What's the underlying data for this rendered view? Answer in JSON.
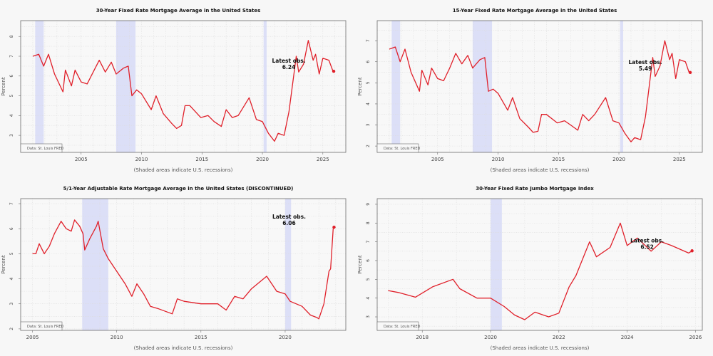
{
  "colors": {
    "line": "#e0202a",
    "recession": "#dcdff7",
    "background": "#f7f7f7",
    "frame": "#6b6b6b"
  },
  "chart_data": [
    {
      "type": "line",
      "title": "30-Year Fixed Rate Mortgage Average in the United States",
      "ylabel": "Percent",
      "xlabel": "(Shaded areas indicate U.S. recessions)",
      "source": "Data: St. Louis FRED",
      "xlim": [
        2000.0,
        2026.9
      ],
      "ylim": [
        2.14,
        8.8
      ],
      "xticks": [
        2005,
        2010,
        2015,
        2020,
        2025
      ],
      "yticks": [
        3,
        4,
        5,
        6,
        7,
        8
      ],
      "grid": true,
      "recessions": [
        [
          2001.2,
          2001.9
        ],
        [
          2007.9,
          2009.5
        ],
        [
          2020.1,
          2020.35
        ]
      ],
      "annotation": {
        "label": "Latest obs.",
        "value": "6.24"
      },
      "x": [
        2001.0,
        2001.5,
        2001.9,
        2002.3,
        2002.8,
        2003.5,
        2003.7,
        2004.2,
        2004.5,
        2005.0,
        2005.5,
        2006.0,
        2006.5,
        2007.0,
        2007.5,
        2007.9,
        2008.5,
        2008.9,
        2009.2,
        2009.6,
        2010.0,
        2010.8,
        2011.2,
        2011.8,
        2012.5,
        2012.9,
        2013.3,
        2013.6,
        2014.0,
        2014.9,
        2015.5,
        2016.0,
        2016.6,
        2017.0,
        2017.5,
        2018.0,
        2018.9,
        2019.5,
        2020.0,
        2020.5,
        2021.0,
        2021.3,
        2021.8,
        2022.2,
        2022.8,
        2023.0,
        2023.4,
        2023.8,
        2024.2,
        2024.4,
        2024.7,
        2025.0,
        2025.5,
        2025.8,
        2025.9
      ],
      "y": [
        7.0,
        7.1,
        6.5,
        7.1,
        6.1,
        5.2,
        6.3,
        5.5,
        6.3,
        5.7,
        5.6,
        6.2,
        6.8,
        6.2,
        6.7,
        6.1,
        6.4,
        6.5,
        5.0,
        5.3,
        5.1,
        4.3,
        5.0,
        4.1,
        3.6,
        3.35,
        3.5,
        4.5,
        4.5,
        3.9,
        4.0,
        3.7,
        3.45,
        4.3,
        3.9,
        4.0,
        4.9,
        3.8,
        3.7,
        3.1,
        2.7,
        3.1,
        3.0,
        4.2,
        7.0,
        6.2,
        6.6,
        7.8,
        6.8,
        7.1,
        6.1,
        6.9,
        6.8,
        6.3,
        6.24
      ]
    },
    {
      "type": "line",
      "title": "15-Year Fixed Rate Mortgage Average in the United States",
      "ylabel": "Percent",
      "xlabel": "(Shaded areas indicate U.S. recessions)",
      "source": "Data: St. Louis FRED",
      "xlim": [
        2000.0,
        2026.9
      ],
      "ylim": [
        1.7,
        7.95
      ],
      "xticks": [
        2005,
        2010,
        2015,
        2020,
        2025
      ],
      "yticks": [
        2,
        3,
        4,
        5,
        6,
        7
      ],
      "grid": true,
      "recessions": [
        [
          2001.2,
          2001.9
        ],
        [
          2007.9,
          2009.5
        ],
        [
          2020.1,
          2020.35
        ]
      ],
      "annotation": {
        "label": "Latest obs.",
        "value": "5.49"
      },
      "x": [
        2001.0,
        2001.5,
        2001.9,
        2002.3,
        2002.8,
        2003.5,
        2003.7,
        2004.2,
        2004.5,
        2005.0,
        2005.5,
        2006.0,
        2006.5,
        2007.0,
        2007.5,
        2007.9,
        2008.5,
        2008.9,
        2009.2,
        2009.6,
        2010.0,
        2010.8,
        2011.2,
        2011.8,
        2012.5,
        2012.9,
        2013.3,
        2013.6,
        2014.0,
        2014.9,
        2015.5,
        2016.0,
        2016.6,
        2017.0,
        2017.5,
        2018.0,
        2018.9,
        2019.5,
        2020.0,
        2020.5,
        2021.0,
        2021.3,
        2021.8,
        2022.2,
        2022.8,
        2023.0,
        2023.4,
        2023.8,
        2024.2,
        2024.4,
        2024.7,
        2025.0,
        2025.5,
        2025.8,
        2025.9
      ],
      "y": [
        6.6,
        6.7,
        6.0,
        6.6,
        5.5,
        4.6,
        5.6,
        4.9,
        5.7,
        5.2,
        5.1,
        5.7,
        6.4,
        5.9,
        6.3,
        5.7,
        6.1,
        6.2,
        4.6,
        4.7,
        4.5,
        3.7,
        4.3,
        3.3,
        2.9,
        2.65,
        2.7,
        3.5,
        3.5,
        3.1,
        3.2,
        3.0,
        2.75,
        3.5,
        3.2,
        3.5,
        4.3,
        3.2,
        3.1,
        2.6,
        2.2,
        2.4,
        2.3,
        3.4,
        6.2,
        5.3,
        5.8,
        7.0,
        6.1,
        6.4,
        5.2,
        6.1,
        6.0,
        5.5,
        5.49
      ]
    },
    {
      "type": "line",
      "title": "5/1-Year Adjustable Rate Mortgage Average in the United States (DISCONTINUED)",
      "ylabel": "Percent",
      "xlabel": "(Shaded areas indicate U.S. recessions)",
      "source": "Data: St. Louis FRED",
      "xlim": [
        2004.3,
        2023.6
      ],
      "ylim": [
        1.94,
        7.2
      ],
      "xticks": [
        2005,
        2010,
        2015,
        2020
      ],
      "yticks": [
        2,
        3,
        4,
        5,
        6,
        7
      ],
      "grid": true,
      "recessions": [
        [
          2007.95,
          2009.5
        ],
        [
          2020.0,
          2020.35
        ]
      ],
      "annotation": {
        "label": "Latest obs.",
        "value": "6.06"
      },
      "x": [
        2005.0,
        2005.2,
        2005.4,
        2005.7,
        2006.0,
        2006.3,
        2006.7,
        2007.0,
        2007.3,
        2007.5,
        2007.8,
        2008.0,
        2008.1,
        2008.4,
        2008.8,
        2008.9,
        2009.2,
        2009.5,
        2010.0,
        2010.5,
        2010.9,
        2011.2,
        2011.6,
        2012.0,
        2012.5,
        2013.3,
        2013.6,
        2014.0,
        2015.0,
        2016.0,
        2016.5,
        2017.0,
        2017.5,
        2018.0,
        2018.9,
        2019.5,
        2020.0,
        2020.3,
        2021.0,
        2021.5,
        2021.9,
        2022.0,
        2022.3,
        2022.6,
        2022.7,
        2022.85,
        2022.9
      ],
      "y": [
        5.0,
        5.0,
        5.4,
        5.0,
        5.3,
        5.8,
        6.3,
        6.0,
        5.9,
        6.35,
        6.1,
        5.8,
        5.15,
        5.6,
        6.1,
        6.3,
        5.2,
        4.8,
        4.3,
        3.8,
        3.3,
        3.8,
        3.4,
        2.9,
        2.8,
        2.6,
        3.2,
        3.1,
        3.0,
        3.0,
        2.75,
        3.3,
        3.2,
        3.6,
        4.1,
        3.5,
        3.4,
        3.1,
        2.9,
        2.55,
        2.45,
        2.4,
        3.0,
        4.3,
        4.4,
        6.0,
        6.06
      ]
    },
    {
      "type": "line",
      "title": "30-Year Fixed Rate Jumbo Mortgage Index",
      "ylabel": "Percent",
      "xlabel": "(Shaded areas indicate U.S. recessions)",
      "source": "Data: St. Louis FRED",
      "xlim": [
        2016.68,
        2026.2
      ],
      "ylim": [
        2.28,
        9.3
      ],
      "xticks": [
        2018,
        2020,
        2022,
        2024,
        2026
      ],
      "yticks": [
        3,
        4,
        5,
        6,
        7,
        8,
        9
      ],
      "grid": true,
      "recessions": [
        [
          2020.0,
          2020.33
        ]
      ],
      "annotation": {
        "label": "Latest obs.",
        "value": "6.52"
      },
      "x": [
        2017.0,
        2017.3,
        2017.8,
        2018.3,
        2018.9,
        2019.1,
        2019.6,
        2020.0,
        2020.4,
        2020.7,
        2021.0,
        2021.3,
        2021.7,
        2022.0,
        2022.3,
        2022.5,
        2022.9,
        2023.1,
        2023.5,
        2023.8,
        2024.0,
        2024.3,
        2024.7,
        2025.0,
        2025.3,
        2025.8,
        2025.9
      ],
      "y": [
        4.4,
        4.3,
        4.05,
        4.6,
        5.0,
        4.5,
        4.0,
        4.0,
        3.55,
        3.1,
        2.85,
        3.25,
        3.0,
        3.2,
        4.6,
        5.2,
        7.0,
        6.2,
        6.7,
        8.0,
        6.8,
        7.2,
        6.5,
        7.0,
        6.8,
        6.4,
        6.52
      ]
    }
  ]
}
